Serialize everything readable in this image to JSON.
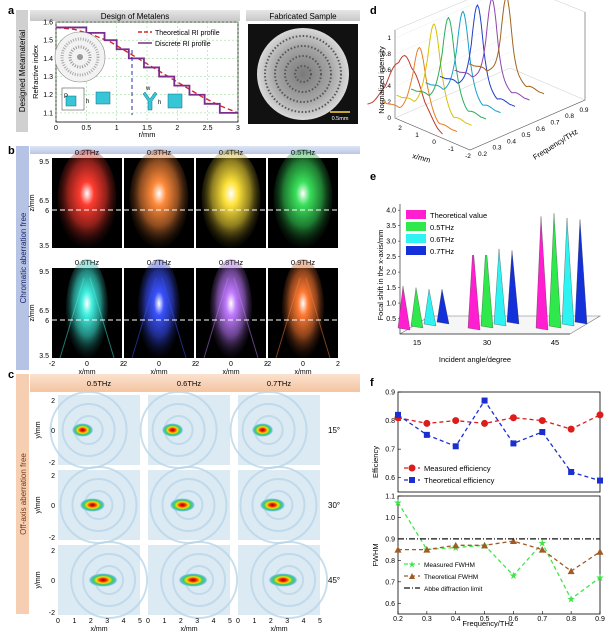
{
  "panel_letters": [
    "a",
    "b",
    "c",
    "d",
    "e",
    "f"
  ],
  "panel_a": {
    "header_left": "Design of Metalens",
    "header_right": "Fabricated Sample",
    "side_label": "Designed Metamaterial",
    "scale_bar": "0.5mm",
    "inset_labels": {
      "p": "P",
      "h": "h",
      "w": "w",
      "h2": "h"
    },
    "chart_data": {
      "type": "line",
      "title": "",
      "xlabel": "r/mm",
      "ylabel": "Refractive index",
      "xlim": [
        0,
        3
      ],
      "ylim": [
        1.05,
        1.6
      ],
      "xticks": [
        "0",
        "0.5",
        "1",
        "1.5",
        "2",
        "2.5",
        "3"
      ],
      "yticks": [
        "1.1",
        "1.2",
        "1.3",
        "1.4",
        "1.5",
        "1.6"
      ],
      "series": [
        {
          "name": "Theoretical RI profile",
          "color": "#d62728",
          "x": [
            0,
            0.3,
            0.6,
            0.9,
            1.2,
            1.5,
            1.8,
            2.1,
            2.4,
            2.7,
            3.0
          ],
          "y": [
            1.57,
            1.56,
            1.53,
            1.49,
            1.43,
            1.37,
            1.31,
            1.25,
            1.19,
            1.14,
            1.1
          ]
        },
        {
          "name": "Discrete RI profile",
          "color": "#7b2d8e",
          "x": [
            0,
            0.5,
            0.5,
            0.8,
            0.8,
            1.0,
            1.0,
            1.2,
            1.2,
            1.45,
            1.45,
            1.7,
            1.7,
            1.95,
            1.95,
            2.2,
            2.2,
            2.45,
            2.45,
            2.7,
            2.7,
            3.0
          ],
          "y": [
            1.57,
            1.57,
            1.54,
            1.54,
            1.5,
            1.5,
            1.45,
            1.45,
            1.4,
            1.4,
            1.35,
            1.35,
            1.3,
            1.3,
            1.25,
            1.25,
            1.2,
            1.2,
            1.15,
            1.15,
            1.1,
            1.1
          ]
        }
      ]
    }
  },
  "panel_b": {
    "side_label": "Chromatic aberration free",
    "ylabel": "z/mm",
    "xlabel": "x/mm",
    "yticks": [
      "9.5",
      "6.5",
      "6",
      "3.5"
    ],
    "xticks": [
      "-2",
      "0",
      "2"
    ],
    "freqs": [
      "0.2THz",
      "0.3THz",
      "0.4THz",
      "0.5THz",
      "0.6THz",
      "0.7THz",
      "0.8THz",
      "0.9THz"
    ],
    "colors": [
      "#ff3b2f",
      "#ff8a3a",
      "#ffe23a",
      "#39e05a",
      "#3ff0e0",
      "#3a52ff",
      "#c07aff",
      "#ff7a33"
    ]
  },
  "panel_c": {
    "side_label": "Off-axis aberration free",
    "header_freqs": [
      "0.5THz",
      "0.6THz",
      "0.7THz"
    ],
    "angles": [
      "15°",
      "30°",
      "45°"
    ],
    "ylabel": "y/mm",
    "xlabel": "x/mm",
    "yticks": [
      "2",
      "0",
      "-2"
    ],
    "xticks": [
      "0",
      "1",
      "2",
      "3",
      "4",
      "5"
    ]
  },
  "panel_d": {
    "zlabel": "Normalized intensity",
    "xlabel": "x/mm",
    "ylabel": "Frequency/THz",
    "zticks": [
      "0",
      "0.2",
      "0.4",
      "0.6",
      "0.8",
      "1"
    ],
    "xticks": [
      "2",
      "1",
      "0",
      "-1",
      "-2"
    ],
    "yticks": [
      "0.2",
      "0.3",
      "0.4",
      "0.5",
      "0.6",
      "0.7",
      "0.8",
      "0.9"
    ],
    "chart_data": {
      "type": "line",
      "title": "",
      "xlabel": "x/mm",
      "ylabel": "Frequency/THz",
      "zlabel": "Normalized intensity",
      "series": [
        {
          "name": "0.2",
          "peak": 0.78,
          "color": "#c0392b"
        },
        {
          "name": "0.3",
          "peak": 0.8,
          "color": "#e67e22"
        },
        {
          "name": "0.4",
          "peak": 1.0,
          "color": "#d4c400"
        },
        {
          "name": "0.5",
          "peak": 1.0,
          "color": "#27ae60"
        },
        {
          "name": "0.6",
          "peak": 1.0,
          "color": "#16a0c9"
        },
        {
          "name": "0.7",
          "peak": 1.0,
          "color": "#1f3fc9"
        },
        {
          "name": "0.8",
          "peak": 1.0,
          "color": "#8e44ad"
        },
        {
          "name": "0.9",
          "peak": 0.95,
          "color": "#a0651c"
        }
      ]
    }
  },
  "panel_e": {
    "chart_data": {
      "type": "bar",
      "title": "",
      "xlabel": "Incident angle/degree",
      "ylabel": "Focal shift in the x-axis/mm",
      "categories": [
        "15",
        "30",
        "45"
      ],
      "yticks": [
        "0.5",
        "1.0",
        "1.5",
        "2.0",
        "2.5",
        "3.0",
        "3.5",
        "4.0"
      ],
      "ylim": [
        0,
        4.2
      ],
      "series": [
        {
          "name": "Theoretical value",
          "color": "#ff1fd0",
          "values": [
            1.55,
            2.85,
            3.8
          ]
        },
        {
          "name": "0.5THz",
          "color": "#2ee84c",
          "values": [
            1.5,
            2.9,
            3.9
          ]
        },
        {
          "name": "0.6THz",
          "color": "#2ff3f3",
          "values": [
            1.45,
            2.75,
            3.75
          ]
        },
        {
          "name": "0.7THz",
          "color": "#1430d8",
          "values": [
            1.45,
            2.7,
            3.7
          ]
        }
      ]
    }
  },
  "panel_f": {
    "top": {
      "chart_data": {
        "type": "line",
        "title": "",
        "xlabel": "",
        "ylabel": "Efficiency",
        "x": [
          0.2,
          0.3,
          0.4,
          0.5,
          0.6,
          0.7,
          0.8,
          0.9
        ],
        "ylim": [
          0.55,
          0.9
        ],
        "yticks": [
          "0.6",
          "0.7",
          "0.8",
          "0.9"
        ],
        "series": [
          {
            "name": "Measured efficiency",
            "color": "#dd1c1c",
            "values": [
              0.81,
              0.79,
              0.8,
              0.79,
              0.81,
              0.8,
              0.77,
              0.82
            ]
          },
          {
            "name": "Theoretical efficiency",
            "color": "#1b2fd0",
            "values": [
              0.82,
              0.75,
              0.71,
              0.87,
              0.72,
              0.76,
              0.62,
              0.59
            ]
          }
        ]
      }
    },
    "bottom": {
      "chart_data": {
        "type": "line",
        "title": "",
        "xlabel": "Frequency/THz",
        "ylabel": "FWHM",
        "x": [
          0.2,
          0.3,
          0.4,
          0.5,
          0.6,
          0.7,
          0.8,
          0.9
        ],
        "xticks": [
          "0.2",
          "0.3",
          "0.4",
          "0.5",
          "0.6",
          "0.7",
          "0.8",
          "0.9"
        ],
        "ylim": [
          0.55,
          1.1
        ],
        "yticks": [
          "0.6",
          "0.7",
          "0.8",
          "0.9",
          "1.0",
          "1.1"
        ],
        "series": [
          {
            "name": "Measured FWHM",
            "color": "#3ee64a",
            "values": [
              1.07,
              0.85,
              0.86,
              0.87,
              0.73,
              0.88,
              0.62,
              0.72
            ]
          },
          {
            "name": "Theoretical FWHM",
            "color": "#a05a24",
            "values": [
              0.85,
              0.85,
              0.87,
              0.87,
              0.89,
              0.85,
              0.75,
              0.84
            ]
          },
          {
            "name": "Abbe diffraction limit",
            "color": "#111111",
            "values": [
              0.9,
              0.9,
              0.9,
              0.9,
              0.9,
              0.9,
              0.9,
              0.9
            ]
          }
        ]
      }
    }
  }
}
